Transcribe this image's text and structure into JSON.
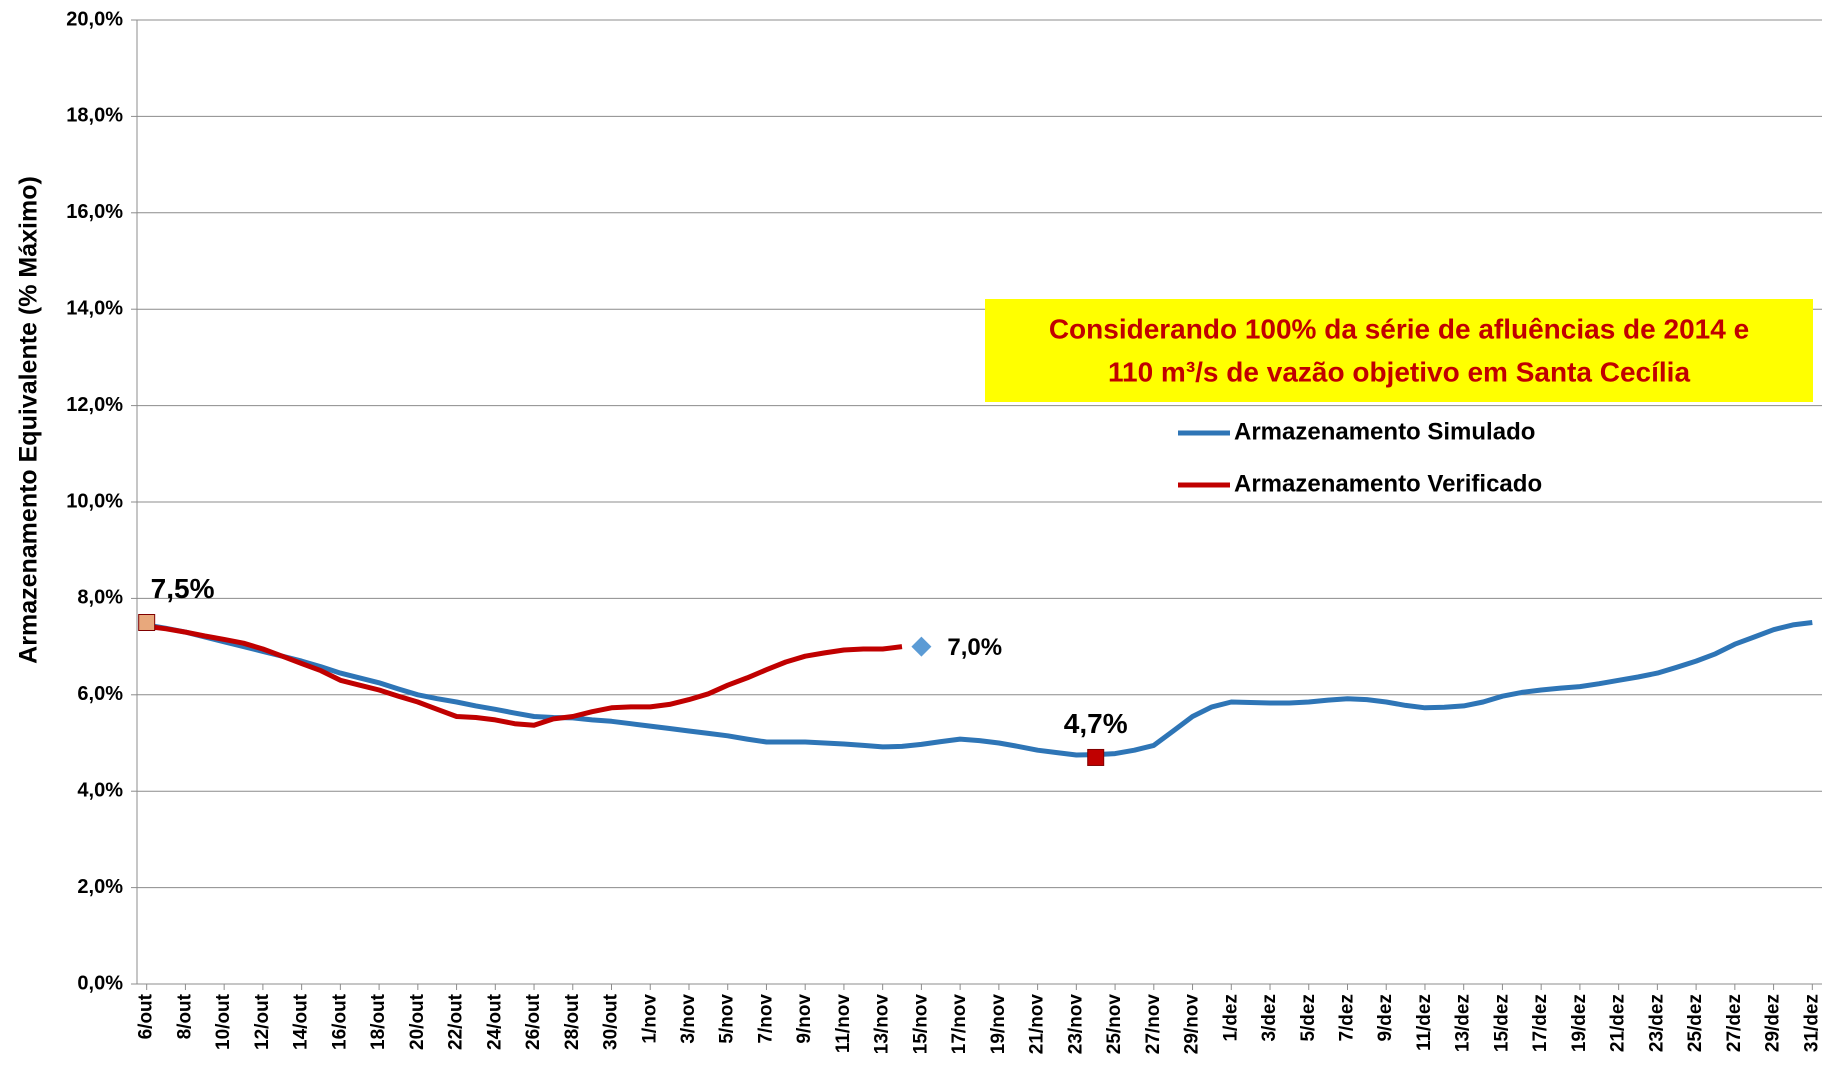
{
  "chart_data": {
    "type": "line",
    "y_label": "Armazenamento Equivalente (% Máximo)",
    "note_lines": [
      "Considerando 100% da série de afluências de 2014 e",
      "110 m³/s de vazão objetivo em Santa Cecília"
    ],
    "categories": [
      "6/out",
      null,
      "8/out",
      null,
      "10/out",
      null,
      "12/out",
      null,
      "14/out",
      null,
      "16/out",
      null,
      "18/out",
      null,
      "20/out",
      null,
      "22/out",
      null,
      "24/out",
      null,
      "26/out",
      null,
      "28/out",
      null,
      "30/out",
      null,
      "1/nov",
      null,
      "3/nov",
      null,
      "5/nov",
      null,
      "7/nov",
      null,
      "9/nov",
      null,
      "11/nov",
      null,
      "13/nov",
      null,
      "15/nov",
      null,
      "17/nov",
      null,
      "19/nov",
      null,
      "21/nov",
      null,
      "23/nov",
      null,
      "25/nov",
      null,
      "27/nov",
      null,
      "29/nov",
      null,
      "1/dez",
      null,
      "3/dez",
      null,
      "5/dez",
      null,
      "7/dez",
      null,
      "9/dez",
      null,
      "11/dez",
      null,
      "13/dez",
      null,
      "15/dez",
      null,
      "17/dez",
      null,
      "19/dez",
      null,
      "21/dez",
      null,
      "23/dez",
      null,
      "25/dez",
      null,
      "27/dez",
      null,
      "29/dez",
      null,
      "31/dez"
    ],
    "series": [
      {
        "name": "Armazenamento Simulado",
        "color": "#2e75b6",
        "values": [
          7.45,
          7.38,
          7.3,
          7.2,
          7.1,
          7.0,
          6.9,
          6.8,
          6.7,
          6.58,
          6.45,
          6.35,
          6.25,
          6.12,
          6.0,
          5.92,
          5.85,
          5.77,
          5.7,
          5.62,
          5.55,
          5.53,
          5.52,
          5.48,
          5.45,
          5.4,
          5.35,
          5.3,
          5.25,
          5.2,
          5.15,
          5.08,
          5.02,
          5.02,
          5.02,
          5.0,
          4.98,
          4.95,
          4.92,
          4.93,
          4.97,
          5.03,
          5.08,
          5.05,
          5.0,
          4.93,
          4.85,
          4.8,
          4.75,
          4.76,
          4.78,
          4.85,
          4.95,
          5.25,
          5.55,
          5.75,
          5.85,
          5.84,
          5.83,
          5.83,
          5.85,
          5.89,
          5.92,
          5.9,
          5.85,
          5.78,
          5.73,
          5.74,
          5.77,
          5.85,
          5.97,
          6.05,
          6.1,
          6.14,
          6.17,
          6.23,
          6.3,
          6.37,
          6.45,
          6.57,
          6.7,
          6.85,
          7.05,
          7.2,
          7.35,
          7.45,
          7.5
        ]
      },
      {
        "name": "Armazenamento Verificado",
        "color": "#c00000",
        "values": [
          7.42,
          7.37,
          7.3,
          7.22,
          7.15,
          7.07,
          6.95,
          6.8,
          6.65,
          6.5,
          6.3,
          6.2,
          6.1,
          5.97,
          5.85,
          5.7,
          5.55,
          5.53,
          5.48,
          5.4,
          5.37,
          5.5,
          5.55,
          5.65,
          5.73,
          5.75,
          5.75,
          5.8,
          5.9,
          6.02,
          6.2,
          6.35,
          6.52,
          6.68,
          6.8,
          6.87,
          6.93,
          6.95,
          6.95,
          7.0,
          null,
          null,
          null,
          null,
          null,
          null,
          null,
          null,
          null,
          null,
          null,
          null,
          null,
          null,
          null,
          null,
          null,
          null,
          null,
          null,
          null,
          null,
          null,
          null,
          null,
          null,
          null,
          null,
          null,
          null,
          null,
          null,
          null,
          null,
          null,
          null,
          null,
          null,
          null,
          null,
          null,
          null,
          null,
          null,
          null,
          null,
          null
        ]
      }
    ],
    "annotations": [
      {
        "label": "7,5%",
        "value": 7.5,
        "index": 0,
        "marker": "square",
        "color": "#e8a87c"
      },
      {
        "label": "7,0%",
        "value": 7.0,
        "index": 40,
        "marker": "diamond",
        "color": "#5b9bd5"
      },
      {
        "label": "4,7%",
        "value": 4.7,
        "index": 49,
        "marker": "square",
        "color": "#c00000"
      }
    ],
    "ylim": [
      0,
      20
    ],
    "yticks": [
      {
        "value": 0,
        "label": "0,0%"
      },
      {
        "value": 2,
        "label": "2,0%"
      },
      {
        "value": 4,
        "label": "4,0%"
      },
      {
        "value": 6,
        "label": "6,0%"
      },
      {
        "value": 8,
        "label": "8,0%"
      },
      {
        "value": 10,
        "label": "10,0%"
      },
      {
        "value": 12,
        "label": "12,0%"
      },
      {
        "value": 14,
        "label": "14,0%"
      },
      {
        "value": 16,
        "label": "16,0%"
      },
      {
        "value": 18,
        "label": "18,0%"
      },
      {
        "value": 20,
        "label": "20,0%"
      }
    ],
    "grid": true
  }
}
